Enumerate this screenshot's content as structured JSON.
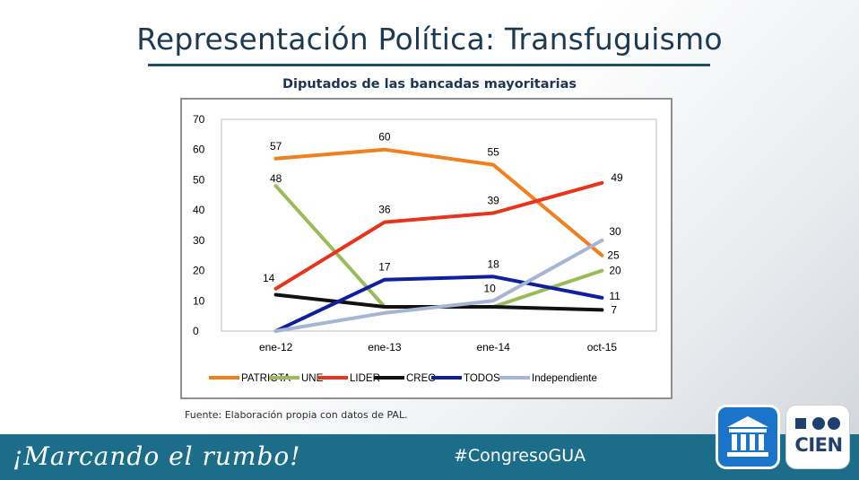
{
  "header": {
    "title": "Representación Política: Transfuguismo",
    "subtitle": "Diputados de las bancadas mayoritarias"
  },
  "source_note": "Fuente: Elaboración propia con datos de PAL.",
  "footer": {
    "slogan": "¡Marcando el rumbo!",
    "hashtag": "#CongresoGUA",
    "logo_congreso_icon": "congress-building-icon",
    "logo_cien_text": "CIEN"
  },
  "colors": {
    "title": "#1d3a53",
    "footer_bg": "#1b6d89"
  },
  "chart_data": {
    "type": "line",
    "title": "Diputados de las bancadas mayoritarias",
    "categories": [
      "ene-12",
      "ene-13",
      "ene-14",
      "oct-15"
    ],
    "ylim": [
      0,
      70
    ],
    "yticks": [
      0,
      10,
      20,
      30,
      40,
      50,
      60,
      70
    ],
    "grid": false,
    "legend_position": "bottom",
    "series": [
      {
        "name": "PATRIOTA",
        "color": "#f07f1c",
        "values": [
          57,
          60,
          55,
          25
        ],
        "labels": [
          "57",
          "60",
          "55",
          "25"
        ]
      },
      {
        "name": "UNE",
        "color": "#9bbb59",
        "values": [
          48,
          8,
          8,
          20
        ],
        "labels": [
          "48",
          "",
          "",
          "20"
        ]
      },
      {
        "name": "LIDER",
        "color": "#e8341c",
        "values": [
          14,
          36,
          39,
          49
        ],
        "labels": [
          "14",
          "36",
          "39",
          "49"
        ]
      },
      {
        "name": "CREO",
        "color": "#111111",
        "values": [
          12,
          8,
          8,
          7
        ],
        "labels": [
          "",
          "",
          "",
          "7"
        ]
      },
      {
        "name": "TODOS",
        "color": "#0d1f9e",
        "values": [
          0,
          17,
          18,
          11
        ],
        "labels": [
          "",
          "17",
          "18",
          "11"
        ]
      },
      {
        "name": "Independiente",
        "color": "#a5b5d3",
        "values": [
          0,
          6,
          10,
          30
        ],
        "labels": [
          "",
          "",
          "10",
          "30"
        ]
      }
    ]
  }
}
